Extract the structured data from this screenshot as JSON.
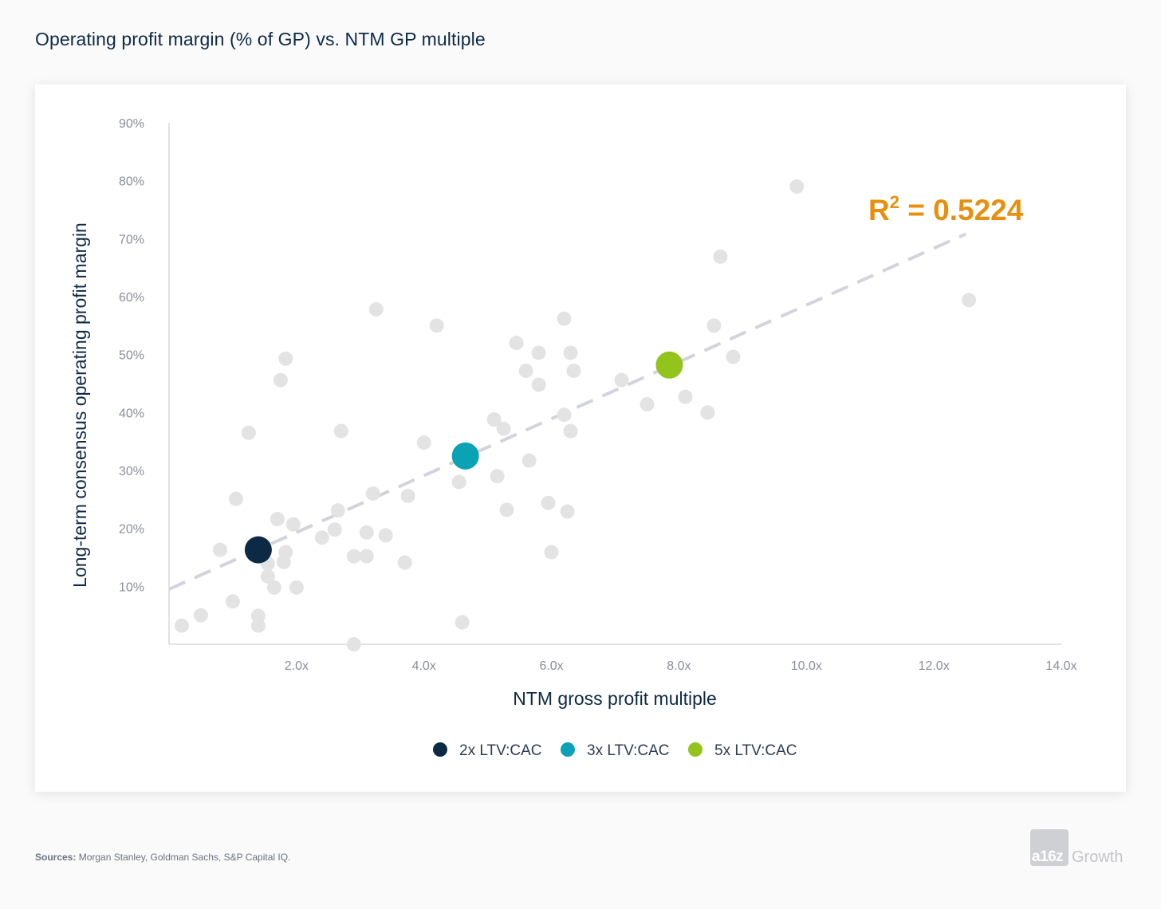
{
  "page": {
    "title": "Operating profit margin (% of GP) vs. NTM GP multiple",
    "sources_label": "Sources:",
    "sources_text": "Morgan Stanley, Goldman Sachs, S&P Capital IQ.",
    "logo_mark": "a16z",
    "logo_word": "Growth"
  },
  "chart_data": {
    "type": "scatter",
    "title": "Operating profit margin (% of GP) vs. NTM GP multiple",
    "xlabel": "NTM gross profit multiple",
    "ylabel": "Long-term consensus operating profit margin",
    "xlim": [
      0,
      14
    ],
    "ylim": [
      0,
      90
    ],
    "x_ticks": [
      2,
      4,
      6,
      8,
      10,
      12,
      14
    ],
    "x_tick_labels": [
      "2.0x",
      "4.0x",
      "6.0x",
      "8.0x",
      "10.0x",
      "12.0x",
      "14.0x"
    ],
    "y_ticks": [
      10,
      20,
      30,
      40,
      50,
      60,
      70,
      80,
      90
    ],
    "y_tick_labels": [
      "10%",
      "20%",
      "30%",
      "40%",
      "50%",
      "60%",
      "70%",
      "80%",
      "90%"
    ],
    "grid": false,
    "annotation": {
      "r2_label": "R",
      "r2_sup": "2",
      "r2_value": " = 0.5224"
    },
    "trendline": {
      "x": [
        0,
        12.5
      ],
      "y": [
        9.5,
        70.8
      ],
      "color": "#d3d4db",
      "style": "dashed"
    },
    "points_color": "#e3e3e3",
    "points": [
      [
        0.2,
        3.2
      ],
      [
        0.5,
        5
      ],
      [
        0.8,
        16.3
      ],
      [
        1.0,
        7.4
      ],
      [
        1.05,
        25.1
      ],
      [
        1.25,
        36.5
      ],
      [
        1.4,
        4.9
      ],
      [
        1.4,
        3.2
      ],
      [
        1.55,
        13.9
      ],
      [
        1.55,
        11.7
      ],
      [
        1.65,
        9.8
      ],
      [
        1.7,
        21.6
      ],
      [
        1.75,
        45.6
      ],
      [
        1.8,
        14.2
      ],
      [
        1.83,
        49.3
      ],
      [
        1.83,
        15.9
      ],
      [
        1.95,
        20.7
      ],
      [
        2.0,
        9.8
      ],
      [
        2.4,
        18.4
      ],
      [
        2.6,
        19.8
      ],
      [
        2.65,
        23.1
      ],
      [
        2.7,
        36.8
      ],
      [
        2.9,
        15.2
      ],
      [
        2.9,
        0
      ],
      [
        3.1,
        19.3
      ],
      [
        3.1,
        15.2
      ],
      [
        3.2,
        26
      ],
      [
        3.25,
        57.8
      ],
      [
        3.4,
        18.8
      ],
      [
        3.7,
        14.1
      ],
      [
        3.75,
        25.6
      ],
      [
        4.0,
        34.8
      ],
      [
        4.2,
        55
      ],
      [
        4.55,
        28
      ],
      [
        4.6,
        3.8
      ],
      [
        5.1,
        38.8
      ],
      [
        5.15,
        29
      ],
      [
        5.25,
        37.2
      ],
      [
        5.3,
        23.2
      ],
      [
        5.45,
        52
      ],
      [
        5.6,
        47.2
      ],
      [
        5.65,
        31.7
      ],
      [
        5.8,
        50.3
      ],
      [
        5.8,
        44.8
      ],
      [
        5.95,
        24.4
      ],
      [
        6.0,
        15.9
      ],
      [
        6.2,
        56.2
      ],
      [
        6.2,
        39.6
      ],
      [
        6.25,
        22.9
      ],
      [
        6.3,
        50.3
      ],
      [
        6.3,
        36.8
      ],
      [
        6.35,
        47.2
      ],
      [
        7.1,
        45.6
      ],
      [
        7.5,
        41.4
      ],
      [
        8.1,
        42.7
      ],
      [
        8.45,
        40
      ],
      [
        8.55,
        55
      ],
      [
        8.65,
        66.9
      ],
      [
        8.85,
        49.6
      ],
      [
        9.85,
        79
      ],
      [
        12.55,
        59.4
      ]
    ],
    "series": [
      {
        "name": "2x LTV:CAC",
        "x": 1.4,
        "y": 16.3,
        "color": "#0d2a45"
      },
      {
        "name": "3x LTV:CAC",
        "x": 4.65,
        "y": 32.5,
        "color": "#0aa2b4"
      },
      {
        "name": "5x LTV:CAC",
        "x": 7.85,
        "y": 48.2,
        "color": "#92c41d"
      }
    ],
    "legend_position": "bottom-center"
  }
}
